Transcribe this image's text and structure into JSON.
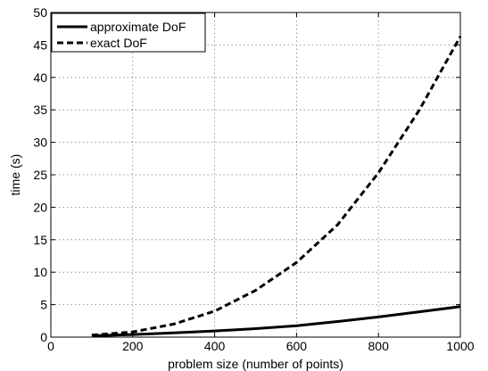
{
  "chart_data": {
    "type": "line",
    "title": "",
    "xlabel": "problem size (number of points)",
    "ylabel": "time (s)",
    "xlim": [
      0,
      1000
    ],
    "ylim": [
      0,
      50
    ],
    "x_ticks": [
      0,
      200,
      400,
      600,
      800,
      1000
    ],
    "y_ticks": [
      0,
      5,
      10,
      15,
      20,
      25,
      30,
      35,
      40,
      45,
      50
    ],
    "grid": true,
    "legend_position": "top-left",
    "x": [
      100,
      200,
      300,
      400,
      500,
      600,
      700,
      800,
      900,
      1000
    ],
    "series": [
      {
        "name": "approximate DoF",
        "style": "solid",
        "color": "#000000",
        "values": [
          0.2,
          0.4,
          0.65,
          0.95,
          1.3,
          1.75,
          2.4,
          3.1,
          3.9,
          4.7
        ]
      },
      {
        "name": "exact DoF",
        "style": "dashed",
        "color": "#000000",
        "values": [
          0.3,
          0.8,
          2.0,
          4.0,
          7.2,
          11.5,
          17.3,
          25.3,
          35.0,
          46.3
        ]
      }
    ]
  }
}
